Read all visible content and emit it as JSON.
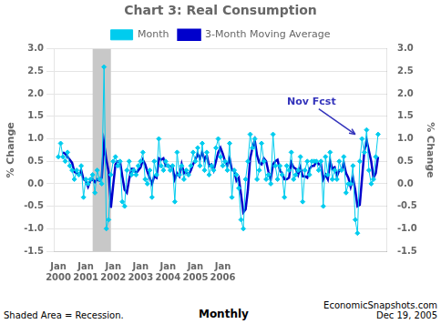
{
  "chart_data": {
    "type": "line",
    "title": "Chart 3: Real Consumption",
    "ylabel": "% Change",
    "y2label": "% Change",
    "footnotes": [
      "Shaded Area = Recession.",
      "Monthly",
      "EconomicSnapshots.com\nDec 19, 2005"
    ],
    "x": [
      0,
      1,
      2,
      3,
      4,
      5,
      6,
      7,
      8,
      9,
      10,
      11,
      12,
      13,
      14,
      15,
      16,
      17,
      18,
      19,
      20,
      21,
      22,
      23,
      24,
      25,
      26,
      27,
      28,
      29,
      30,
      31,
      32,
      33,
      34,
      35,
      36,
      37,
      38,
      39,
      40,
      41,
      42,
      43,
      44,
      45,
      46,
      47,
      48,
      49,
      50,
      51,
      52,
      53,
      54,
      55,
      56,
      57,
      58,
      59,
      60,
      61,
      62,
      63,
      64,
      65,
      66,
      67,
      68,
      69,
      70,
      71,
      72,
      73,
      74,
      75,
      76,
      77,
      78,
      79,
      80,
      81,
      82,
      83,
      84,
      85,
      86,
      87,
      88,
      89,
      90,
      91,
      92,
      93,
      94,
      95,
      96,
      97,
      98,
      99,
      100,
      101,
      102,
      103,
      104,
      105,
      106,
      107,
      108,
      109,
      110,
      111,
      112,
      113,
      114,
      115,
      116,
      117,
      118,
      119,
      120,
      121,
      122,
      123,
      124,
      125,
      126,
      127,
      128,
      129,
      130,
      131,
      132,
      133,
      134,
      135,
      136,
      137,
      138,
      139,
      140
    ],
    "xlim": [
      -2,
      144
    ],
    "xticks": [
      {
        "value": 0,
        "label": "Jan\n2000"
      },
      {
        "value": 12,
        "label": "Jan\n2001"
      },
      {
        "value": 24,
        "label": "Jan\n2002"
      },
      {
        "value": 36,
        "label": "Jan\n2003"
      },
      {
        "value": 48,
        "label": "Jan\n2004"
      },
      {
        "value": 60,
        "label": "Jan\n2005"
      },
      {
        "value": 72,
        "label": "Jan\n2006"
      }
    ],
    "ylim": [
      -1.5,
      3.0
    ],
    "yticks": [
      -1.5,
      {
        "value": -1.0,
        "label": "-1.0"
      },
      -0.5,
      {
        "value": 0.0,
        "label": "0.0"
      },
      0.5,
      {
        "value": 1.0,
        "label": "1.0"
      },
      1.5,
      {
        "value": 2.0,
        "label": "2.0"
      },
      2.5,
      {
        "value": 3.0,
        "label": "3.0"
      }
    ],
    "y2lim": [
      -1.5,
      3.0
    ],
    "y2ticks": [
      -1.5,
      {
        "value": -1.0,
        "label": "-1.0"
      },
      -0.5,
      {
        "value": 0.0,
        "label": "0.0"
      },
      0.5,
      {
        "value": 1.0,
        "label": "1.0"
      },
      1.5,
      {
        "value": 2.0,
        "label": "2.0"
      },
      2.5,
      {
        "value": 3.0,
        "label": "3.0"
      }
    ],
    "grid": "y",
    "legend": "top",
    "shaded_regions": [
      {
        "x0": 15,
        "x1": 23,
        "color": "#C8C8C8"
      }
    ],
    "annotations": [
      {
        "text": "Nov Fcst",
        "x": 130,
        "y": 1.1,
        "color": "#3333BB"
      }
    ],
    "series": [
      {
        "name": "Month",
        "color": "#00CCEE",
        "marker": "diamond",
        "values": [
          0.6,
          0.9,
          0.6,
          0.5,
          0.7,
          0.4,
          0.3,
          0.1,
          0.3,
          0.2,
          0.4,
          -0.3,
          0.1,
          0.0,
          0.1,
          0.2,
          -0.2,
          0.3,
          0.1,
          0.0,
          2.6,
          -1.0,
          -0.8,
          0.2,
          0.5,
          0.6,
          0.4,
          0.5,
          -0.4,
          -0.5,
          0.3,
          0.5,
          0.2,
          0.3,
          0.2,
          0.4,
          0.5,
          0.7,
          0.1,
          0.0,
          0.3,
          -0.3,
          0.5,
          0.2,
          1.0,
          0.4,
          0.3,
          0.5,
          0.4,
          0.3,
          0.4,
          -0.4,
          0.7,
          0.2,
          0.4,
          0.1,
          0.3,
          0.2,
          0.4,
          0.7,
          0.5,
          0.8,
          0.4,
          0.9,
          0.3,
          0.7,
          0.2,
          0.4,
          0.3,
          0.8,
          1.0,
          0.6,
          0.4,
          0.5,
          0.3,
          0.9,
          -0.3,
          0.3,
          0.2,
          -0.1,
          -0.8,
          -1.0,
          0.1,
          0.5,
          1.1,
          0.8,
          1.0,
          0.1,
          0.3,
          0.9,
          0.5,
          0.1,
          0.2,
          0.0,
          1.1,
          0.4,
          0.1,
          0.4,
          0.2,
          -0.3,
          0.4,
          0.3,
          0.7,
          0.1,
          0.2,
          0.3,
          0.6,
          -0.4,
          0.3,
          0.5,
          0.2,
          0.5,
          0.5,
          0.5,
          0.3,
          0.5,
          -0.5,
          0.6,
          0.2,
          0.7,
          0.1,
          0.3,
          0.1,
          0.5,
          0.3,
          0.6,
          -0.2,
          0.0,
          0.0,
          0.4,
          -0.8,
          -1.1,
          0.5,
          1.0,
          0.7,
          1.2,
          0.3,
          0.0,
          0.1,
          0.6,
          1.1
        ]
      },
      {
        "name": "3-Month Moving Average",
        "color": "#0000CC",
        "marker": "none",
        "values": [
          null,
          null,
          0.7,
          0.6667,
          0.6,
          0.5333,
          0.4667,
          0.2667,
          0.2333,
          0.2,
          0.3,
          0.1,
          0.0667,
          -0.0667,
          0.0667,
          0.1,
          0.0333,
          0.1,
          0.0667,
          0.1333,
          0.9,
          0.5333,
          0.2667,
          -0.5333,
          -0.0333,
          0.4333,
          0.5,
          0.5,
          0.1667,
          -0.1333,
          -0.2,
          0.1,
          0.3333,
          0.3333,
          0.2333,
          0.3,
          0.3667,
          0.5333,
          0.4333,
          0.2667,
          0.1333,
          0.0,
          0.1667,
          0.1333,
          0.5667,
          0.5333,
          0.5667,
          0.4,
          0.4,
          0.4,
          0.3667,
          0.1,
          0.2333,
          0.1667,
          0.4333,
          0.2333,
          0.2667,
          0.2,
          0.3,
          0.4333,
          0.5333,
          0.6667,
          0.5667,
          0.7,
          0.5333,
          0.6333,
          0.4,
          0.4333,
          0.3,
          0.5,
          0.7,
          0.8,
          0.6667,
          0.5,
          0.4,
          0.5667,
          0.3,
          0.3,
          0.0667,
          0.1333,
          -0.2333,
          -0.6333,
          -0.5667,
          -0.1333,
          0.5667,
          0.8,
          0.9667,
          0.6333,
          0.4667,
          0.4333,
          0.5667,
          0.5,
          0.2667,
          0.1,
          0.4333,
          0.5,
          0.5333,
          0.3,
          0.2333,
          0.1,
          0.1,
          0.1333,
          0.4667,
          0.3667,
          0.3333,
          0.2,
          0.3667,
          0.1667,
          0.1667,
          0.1333,
          0.3333,
          0.4,
          0.4,
          0.5,
          0.4333,
          0.4333,
          0.1,
          0.2,
          0.1,
          0.5,
          0.3333,
          0.3667,
          0.1667,
          0.3,
          0.3,
          0.4667,
          0.2333,
          0.1333,
          -0.0667,
          0.1333,
          -0.1333,
          -0.5,
          -0.4667,
          0.1333,
          0.7333,
          0.9667,
          0.7333,
          0.5,
          0.1333,
          0.2333,
          0.6
        ]
      }
    ]
  }
}
